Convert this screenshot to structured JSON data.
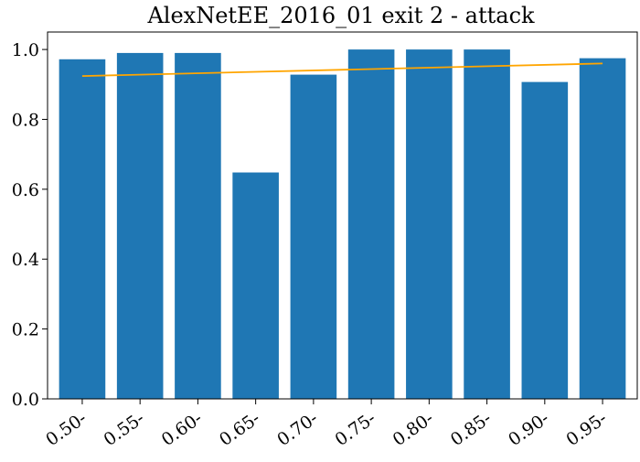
{
  "chart_data": {
    "type": "bar",
    "title": "AlexNetEE_2016_01 exit 2 - attack",
    "xlabel": "",
    "ylabel": "",
    "categories": [
      "0.50-",
      "0.55-",
      "0.60-",
      "0.65-",
      "0.70-",
      "0.75-",
      "0.80-",
      "0.85-",
      "0.90-",
      "0.95-"
    ],
    "values": [
      0.972,
      0.99,
      0.99,
      0.648,
      0.928,
      1.0,
      1.0,
      1.0,
      0.907,
      0.975
    ],
    "trend": {
      "start": 0.924,
      "end": 0.96
    },
    "ylim": [
      0,
      1.05
    ],
    "yticks": [
      "0.0",
      "0.2",
      "0.4",
      "0.6",
      "0.8",
      "1.0"
    ],
    "grid": false,
    "colors": {
      "bar": "#1f77b4",
      "trend": "#ffa500"
    }
  }
}
